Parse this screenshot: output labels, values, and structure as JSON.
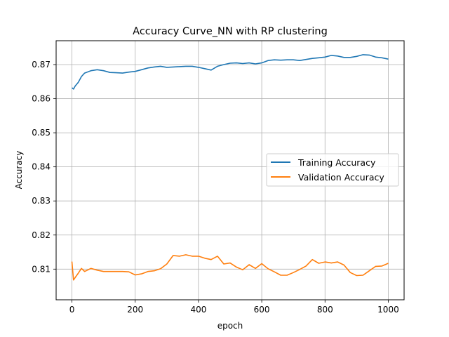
{
  "chart_data": {
    "type": "line",
    "title": "Accuracy Curve_NN with RP clustering",
    "xlabel": "epoch",
    "ylabel": "Accuracy",
    "xlim": [
      -50,
      1050
    ],
    "ylim": [
      0.801,
      0.877
    ],
    "xticks": [
      0,
      200,
      400,
      600,
      800,
      1000
    ],
    "xtick_labels": [
      "0",
      "200",
      "400",
      "600",
      "800",
      "1000"
    ],
    "yticks": [
      0.81,
      0.82,
      0.83,
      0.84,
      0.85,
      0.86,
      0.87
    ],
    "ytick_labels": [
      "0.81",
      "0.82",
      "0.83",
      "0.84",
      "0.85",
      "0.86",
      "0.87"
    ],
    "grid": true,
    "legend_position": "right",
    "series": [
      {
        "name": "Training Accuracy",
        "color": "#1f77b4",
        "x": [
          0,
          5,
          10,
          20,
          30,
          40,
          60,
          80,
          100,
          120,
          140,
          160,
          180,
          200,
          220,
          240,
          260,
          280,
          300,
          320,
          340,
          360,
          380,
          400,
          420,
          440,
          460,
          480,
          500,
          520,
          540,
          560,
          580,
          600,
          620,
          640,
          660,
          680,
          700,
          720,
          740,
          760,
          780,
          800,
          820,
          840,
          860,
          880,
          900,
          920,
          940,
          960,
          980,
          1000
        ],
        "values": [
          0.8632,
          0.8628,
          0.8637,
          0.8648,
          0.8665,
          0.8675,
          0.8682,
          0.8685,
          0.8682,
          0.8677,
          0.8676,
          0.8675,
          0.8678,
          0.868,
          0.8685,
          0.869,
          0.8693,
          0.8695,
          0.8692,
          0.8693,
          0.8694,
          0.8695,
          0.8695,
          0.8692,
          0.8688,
          0.8684,
          0.8695,
          0.87,
          0.8704,
          0.8705,
          0.8703,
          0.8705,
          0.8702,
          0.8705,
          0.8712,
          0.8714,
          0.8713,
          0.8714,
          0.8714,
          0.8712,
          0.8715,
          0.8718,
          0.872,
          0.8722,
          0.8727,
          0.8725,
          0.8721,
          0.8721,
          0.8724,
          0.8729,
          0.8728,
          0.8722,
          0.872,
          0.8716
        ]
      },
      {
        "name": "Validation Accuracy",
        "color": "#ff7f0e",
        "x": [
          0,
          5,
          10,
          20,
          30,
          40,
          60,
          80,
          100,
          120,
          140,
          160,
          180,
          200,
          220,
          240,
          260,
          280,
          300,
          320,
          340,
          360,
          380,
          400,
          420,
          440,
          460,
          480,
          500,
          520,
          540,
          560,
          580,
          600,
          620,
          640,
          660,
          680,
          700,
          720,
          740,
          760,
          780,
          800,
          820,
          840,
          860,
          880,
          900,
          920,
          940,
          960,
          980,
          1000
        ],
        "values": [
          0.8122,
          0.8068,
          0.8075,
          0.8088,
          0.8102,
          0.8093,
          0.8102,
          0.8097,
          0.8093,
          0.8093,
          0.8093,
          0.8093,
          0.8092,
          0.8083,
          0.8086,
          0.8093,
          0.8095,
          0.8101,
          0.8115,
          0.814,
          0.8138,
          0.8142,
          0.8138,
          0.8138,
          0.8132,
          0.8128,
          0.8138,
          0.8115,
          0.8118,
          0.8106,
          0.8098,
          0.8113,
          0.8102,
          0.8116,
          0.8101,
          0.8092,
          0.8082,
          0.8082,
          0.809,
          0.8099,
          0.8109,
          0.8128,
          0.8117,
          0.8121,
          0.8118,
          0.8121,
          0.8112,
          0.809,
          0.8081,
          0.8082,
          0.8095,
          0.8108,
          0.8109,
          0.8117
        ]
      }
    ]
  }
}
